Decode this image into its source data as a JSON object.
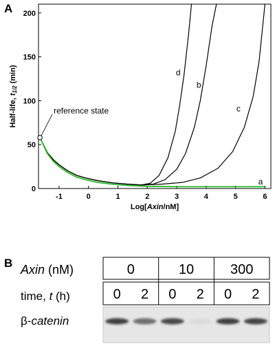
{
  "panel_a": {
    "label": "A",
    "chart_data": {
      "type": "line",
      "xlabel_pre": "Log[",
      "xlabel_var": "Axin",
      "xlabel_post": "/nM]",
      "ylabel_pre": "Half-life, ",
      "ylabel_var": "t",
      "ylabel_sub": "1/2",
      "ylabel_post": " (min)",
      "xlim": [
        -1.7,
        6.2
      ],
      "ylim": [
        0,
        210
      ],
      "x_ticks": [
        -1,
        0,
        1,
        2,
        3,
        4,
        5,
        6
      ],
      "x_tick_labels": [
        "-1",
        "0",
        "1",
        "2",
        "3",
        "4",
        "5",
        "6"
      ],
      "y_ticks": [
        0,
        50,
        100,
        150,
        200
      ],
      "y_tick_labels": [
        "0",
        "50",
        "100",
        "150",
        "200"
      ],
      "annotation": {
        "text": "reference state",
        "x": -1.65,
        "y": 58
      },
      "series": [
        {
          "name": "a",
          "color": "#22bb22",
          "x": [
            -1.65,
            -1.4,
            -1.2,
            -1.0,
            -0.7,
            -0.4,
            -0.1,
            0.3,
            0.8,
            1.3,
            2.0,
            3.0,
            4.0,
            5.0,
            6.0
          ],
          "y": [
            58,
            40,
            31,
            25,
            18,
            13,
            10,
            7,
            5,
            3.5,
            2.5,
            2,
            2,
            2,
            2
          ]
        },
        {
          "name": "b",
          "color": "#000000",
          "x": [
            -1.65,
            -1.4,
            -1.2,
            -1.0,
            -0.7,
            -0.4,
            -0.1,
            0.3,
            0.8,
            1.3,
            1.8,
            2.2,
            2.6,
            3.0,
            3.3,
            3.6,
            3.8,
            4.0,
            4.2,
            4.35
          ],
          "y": [
            58,
            41,
            33,
            27,
            20,
            15,
            12,
            9,
            6.5,
            5,
            4,
            5,
            10,
            22,
            40,
            70,
            100,
            140,
            185,
            210
          ]
        },
        {
          "name": "c",
          "color": "#000000",
          "x": [
            -1.65,
            -1.4,
            -1.2,
            -1.0,
            -0.7,
            -0.4,
            -0.1,
            0.3,
            0.8,
            1.3,
            1.8,
            2.5,
            3.2,
            3.8,
            4.4,
            4.9,
            5.3,
            5.6,
            5.8,
            6.0
          ],
          "y": [
            58,
            41,
            33,
            27,
            20,
            15,
            12,
            9,
            6.5,
            5,
            4,
            5,
            7,
            12,
            23,
            42,
            70,
            105,
            145,
            210
          ]
        },
        {
          "name": "d",
          "color": "#000000",
          "x": [
            -1.65,
            -1.4,
            -1.2,
            -1.0,
            -0.7,
            -0.4,
            -0.1,
            0.3,
            0.8,
            1.3,
            1.8,
            2.1,
            2.4,
            2.7,
            2.95,
            3.1,
            3.25,
            3.4,
            3.5
          ],
          "y": [
            58,
            41,
            33,
            27,
            20,
            15,
            12,
            9,
            6.5,
            5,
            4,
            6,
            15,
            35,
            65,
            95,
            130,
            175,
            210
          ]
        }
      ],
      "curve_labels": [
        {
          "text": "d",
          "x": 3.05,
          "y": 132
        },
        {
          "text": "b",
          "x": 3.75,
          "y": 118
        },
        {
          "text": "c",
          "x": 5.1,
          "y": 91
        },
        {
          "text": "a",
          "x": 5.85,
          "y": 8
        }
      ]
    }
  },
  "panel_b": {
    "label": "B",
    "axin_label_var": "Axin",
    "axin_label_unit": " (nM)",
    "time_label_pre": "time, ",
    "time_label_var": "t",
    "time_label_unit": " (h)",
    "concentrations": [
      "0",
      "10",
      "300"
    ],
    "times": [
      "0",
      "2",
      "0",
      "2",
      "0",
      "2"
    ],
    "row_label_prefix": "β-",
    "row_label_var": "catenin",
    "band_intensities": [
      0.9,
      0.65,
      0.85,
      0.08,
      0.9,
      0.88
    ]
  }
}
